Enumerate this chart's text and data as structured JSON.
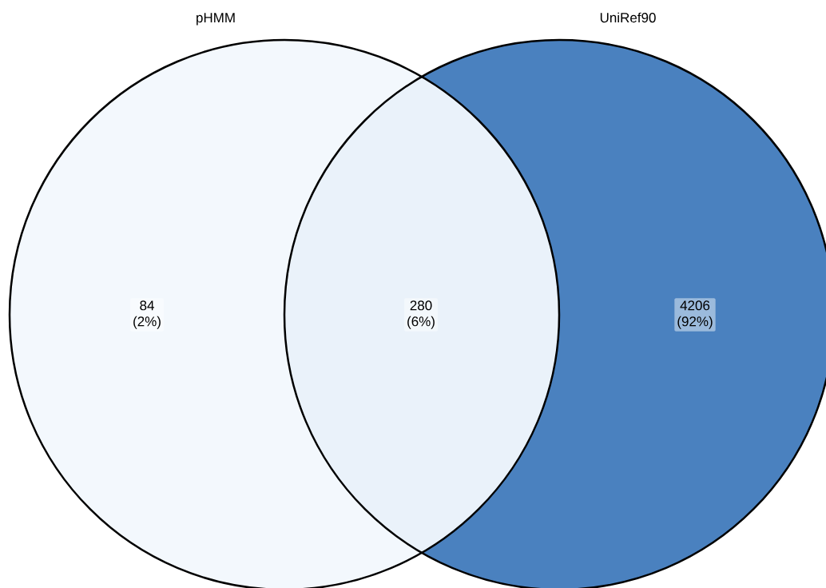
{
  "chart_data": {
    "type": "other",
    "categories": [
      null,
      null,
      null
    ],
    "values": [
      84,
      280,
      4206
    ],
    "data_labels": true,
    "annotations": [
      "pHMM",
      "UniRef90",
      "(2%)",
      "(6%)",
      "(92%)"
    ],
    "colors": [
      "#f3f8fd",
      "#eaf2fa",
      "#4a81bf"
    ]
  }
}
